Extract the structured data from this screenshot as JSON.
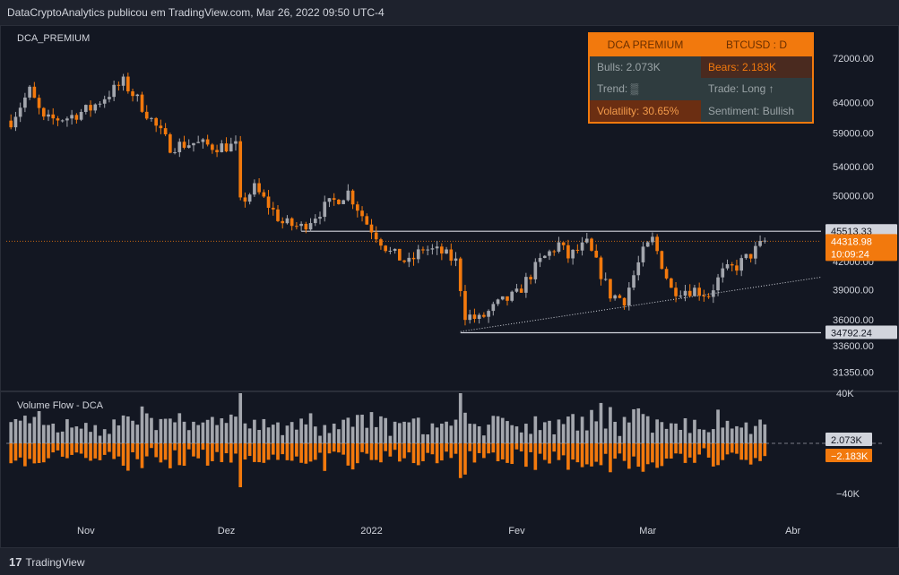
{
  "header": {
    "publisher_line": "DataCryptoAnalytics publicou em TradingView.com, Mar 26, 2022 09:50 UTC-4"
  },
  "footer": {
    "brand": "TradingView",
    "brand_mark": "17"
  },
  "colors": {
    "up": "#a3a6ad",
    "down": "#f2790d",
    "background": "#131722",
    "accent": "#f2790d"
  },
  "info_table": {
    "indicator": "DCA PREMIUM",
    "symbol": "BTCUSD : D",
    "bulls": "Bulls: 2.073K",
    "bears": "Bears: 2.183K",
    "trend": "Trend: ▒",
    "trade": "Trade: Long ↑",
    "volatility": "Volatility: 30.65%",
    "sentiment": "Sentiment: Bullish"
  },
  "chart_data": [
    {
      "type": "candlestick",
      "title": "DCA_PREMIUM",
      "symbol": "BTCUSD",
      "interval": "1D",
      "y_scale": "log",
      "ylim": [
        30000,
        78000
      ],
      "y_ticks": [
        {
          "value": 72000,
          "label": "72000.00"
        },
        {
          "value": 64000,
          "label": "64000.00"
        },
        {
          "value": 59000,
          "label": "59000.00"
        },
        {
          "value": 54000,
          "label": "54000.00"
        },
        {
          "value": 50000,
          "label": "50000.00"
        },
        {
          "value": 42000,
          "label": "42000.00"
        },
        {
          "value": 39000,
          "label": "39000.00"
        },
        {
          "value": 36000,
          "label": "36000.00"
        },
        {
          "value": 33600,
          "label": "33600.00"
        },
        {
          "value": 31350,
          "label": "31350.00"
        }
      ],
      "x_ticks": [
        {
          "date": "2021-11-01",
          "label": "Nov"
        },
        {
          "date": "2021-12-01",
          "label": "Dez"
        },
        {
          "date": "2022-01-01",
          "label": "2022"
        },
        {
          "date": "2022-02-01",
          "label": "Fev"
        },
        {
          "date": "2022-03-01",
          "label": "Mar"
        },
        {
          "date": "2022-04-01",
          "label": "Abr"
        }
      ],
      "x_range": [
        "2021-10-15",
        "2022-04-07"
      ],
      "price_labels": [
        {
          "value": 45513.33,
          "label": "45513.33"
        },
        {
          "value": 44318.98,
          "label": "44318.98",
          "sublabel": "10:09:24"
        },
        {
          "value": 34792.24,
          "label": "34792.24"
        }
      ],
      "last_price": 44318.98,
      "anchors": [
        [
          "2021-10-16",
          61000
        ],
        [
          "2021-10-20",
          66000
        ],
        [
          "2021-10-23",
          61000
        ],
        [
          "2021-10-28",
          61500
        ],
        [
          "2021-11-02",
          63000
        ],
        [
          "2021-11-09",
          67500
        ],
        [
          "2021-11-12",
          64500
        ],
        [
          "2021-11-16",
          60000
        ],
        [
          "2021-11-19",
          57000
        ],
        [
          "2021-11-24",
          57500
        ],
        [
          "2021-11-28",
          57000
        ],
        [
          "2021-12-03",
          57000
        ],
        [
          "2021-12-04",
          49000
        ],
        [
          "2021-12-07",
          51000
        ],
        [
          "2021-12-13",
          46500
        ],
        [
          "2021-12-17",
          46000
        ],
        [
          "2021-12-22",
          48500
        ],
        [
          "2021-12-27",
          50500
        ],
        [
          "2021-12-31",
          46500
        ],
        [
          "2022-01-05",
          43000
        ],
        [
          "2022-01-09",
          41800
        ],
        [
          "2022-01-12",
          43500
        ],
        [
          "2022-01-16",
          43000
        ],
        [
          "2022-01-19",
          42000
        ],
        [
          "2022-01-21",
          36500
        ],
        [
          "2022-01-24",
          36000
        ],
        [
          "2022-01-28",
          37500
        ],
        [
          "2022-02-01",
          38500
        ],
        [
          "2022-02-06",
          42000
        ],
        [
          "2022-02-10",
          44000
        ],
        [
          "2022-02-12",
          42500
        ],
        [
          "2022-02-16",
          44000
        ],
        [
          "2022-02-21",
          38500
        ],
        [
          "2022-02-24",
          38000
        ],
        [
          "2022-02-28",
          43000
        ],
        [
          "2022-03-02",
          44500
        ],
        [
          "2022-03-06",
          39000
        ],
        [
          "2022-03-11",
          39000
        ],
        [
          "2022-03-14",
          38500
        ],
        [
          "2022-03-17",
          40800
        ],
        [
          "2022-03-20",
          41500
        ],
        [
          "2022-03-23",
          42800
        ],
        [
          "2022-03-26",
          44300
        ]
      ],
      "lines": [
        {
          "name": "resistance",
          "from": [
            "2021-12-17",
            45513.33
          ],
          "to": [
            "2022-04-07",
            45513.33
          ],
          "style": "solid"
        },
        {
          "name": "support",
          "from": [
            "2022-01-20",
            34792.24
          ],
          "to": [
            "2022-04-07",
            34792.24
          ],
          "style": "solid"
        },
        {
          "name": "ascending-trendline",
          "from": [
            "2022-01-20",
            34900
          ],
          "to": [
            "2022-04-07",
            40300
          ],
          "style": "dotted"
        }
      ]
    },
    {
      "type": "bar",
      "title": "Volume Flow - DCA",
      "ylim": [
        -40000,
        40000
      ],
      "y_ticks": [
        {
          "value": 40000,
          "label": "40K"
        },
        {
          "value": -40000,
          "label": "−40K"
        }
      ],
      "value_labels": [
        {
          "value": 2073,
          "label": "2.073K"
        },
        {
          "value": -2183,
          "label": "−2.183K"
        }
      ],
      "bulls_approx_range": [
        3000,
        40000
      ],
      "bears_approx_range": [
        -35000,
        -2000
      ]
    }
  ]
}
